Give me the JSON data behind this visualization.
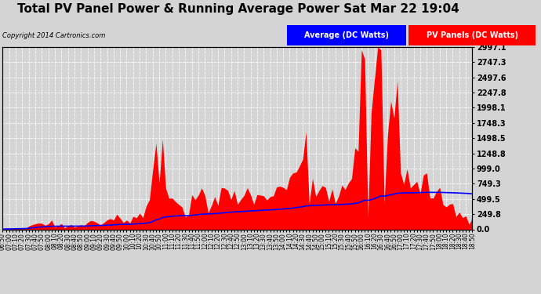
{
  "title": "Total PV Panel Power & Running Average Power Sat Mar 22 19:04",
  "copyright": "Copyright 2014 Cartronics.com",
  "ylabel_right_ticks": [
    0.0,
    249.8,
    499.5,
    749.3,
    999.0,
    1248.8,
    1498.5,
    1748.3,
    1998.1,
    2247.8,
    2497.6,
    2747.3,
    2997.1
  ],
  "ymax": 2997.1,
  "ymin": 0.0,
  "bg_color": "#d4d4d4",
  "plot_bg_color": "#d4d4d4",
  "panel_fill_color": "#ff0000",
  "avg_line_color": "#0000ff",
  "grid_color": "#ffffff",
  "title_fontsize": 11,
  "legend_avg_label": "Average (DC Watts)",
  "legend_pv_label": "PV Panels (DC Watts)",
  "legend_avg_bg": "#0000ff",
  "legend_pv_bg": "#ff0000",
  "n_points": 145
}
